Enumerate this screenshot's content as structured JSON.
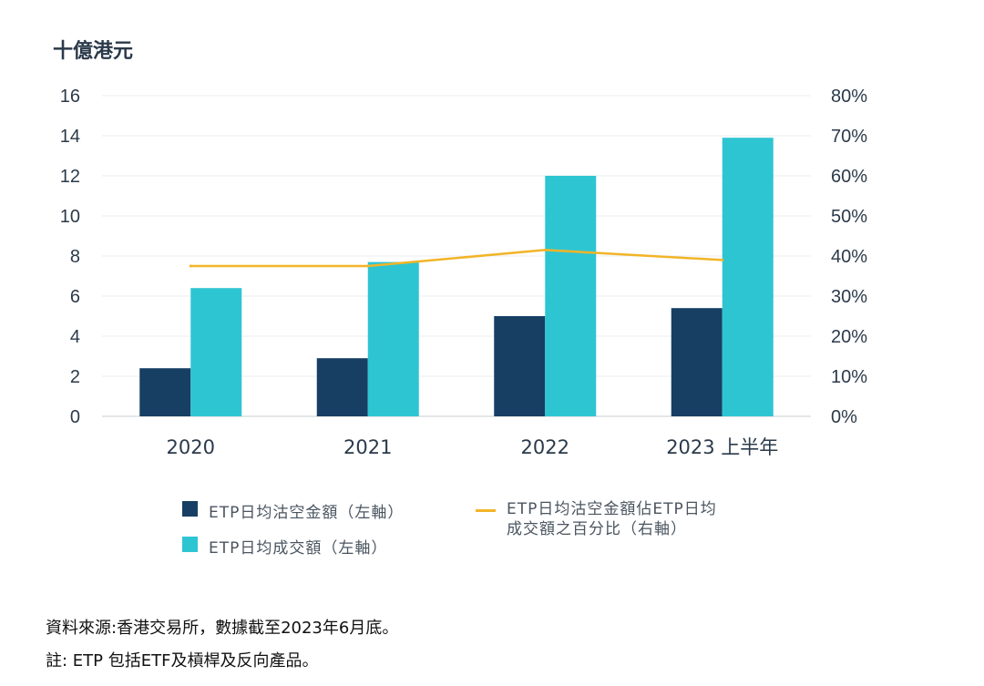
{
  "chart_data": {
    "type": "bar",
    "title": "十億港元",
    "categories": [
      "2020",
      "2021",
      "2022",
      "2023 上半年"
    ],
    "ylim": [
      0,
      16
    ],
    "yticks": [
      "0",
      "2",
      "4",
      "6",
      "8",
      "10",
      "12",
      "14",
      "16"
    ],
    "y2lim": [
      0,
      80
    ],
    "y2ticks": [
      "0%",
      "10%",
      "20%",
      "30%",
      "40%",
      "50%",
      "60%",
      "70%",
      "80%"
    ],
    "grid": true,
    "legend_position": "bottom",
    "series": [
      {
        "name": "ETP日均沽空金額（左軸）",
        "type": "bar",
        "axis": "left",
        "color": "#173f63",
        "values": [
          2.4,
          2.9,
          5.0,
          5.4
        ]
      },
      {
        "name": "ETP日均成交額（左軸）",
        "type": "bar",
        "axis": "left",
        "color": "#2ec5d3",
        "values": [
          6.4,
          7.7,
          12.0,
          13.9
        ]
      },
      {
        "name": "ETP日均沽空金額佔ETP日均成交額之百分比（右軸）",
        "type": "line",
        "axis": "right",
        "color": "#f2b428",
        "values": [
          37.5,
          37.5,
          41.5,
          39.0
        ]
      }
    ]
  },
  "legend": {
    "item1": "ETP日均沽空金額（左軸）",
    "item2": "ETP日均成交額（左軸）",
    "item3_line1": "ETP日均沽空金額佔ETP日均",
    "item3_line2": "成交額之百分比（右軸）"
  },
  "notes": {
    "source": "資料來源:香港交易所，數據截至2023年6月底。",
    "footnote": "註: ETP 包括ETF及槓桿及反向產品。"
  }
}
